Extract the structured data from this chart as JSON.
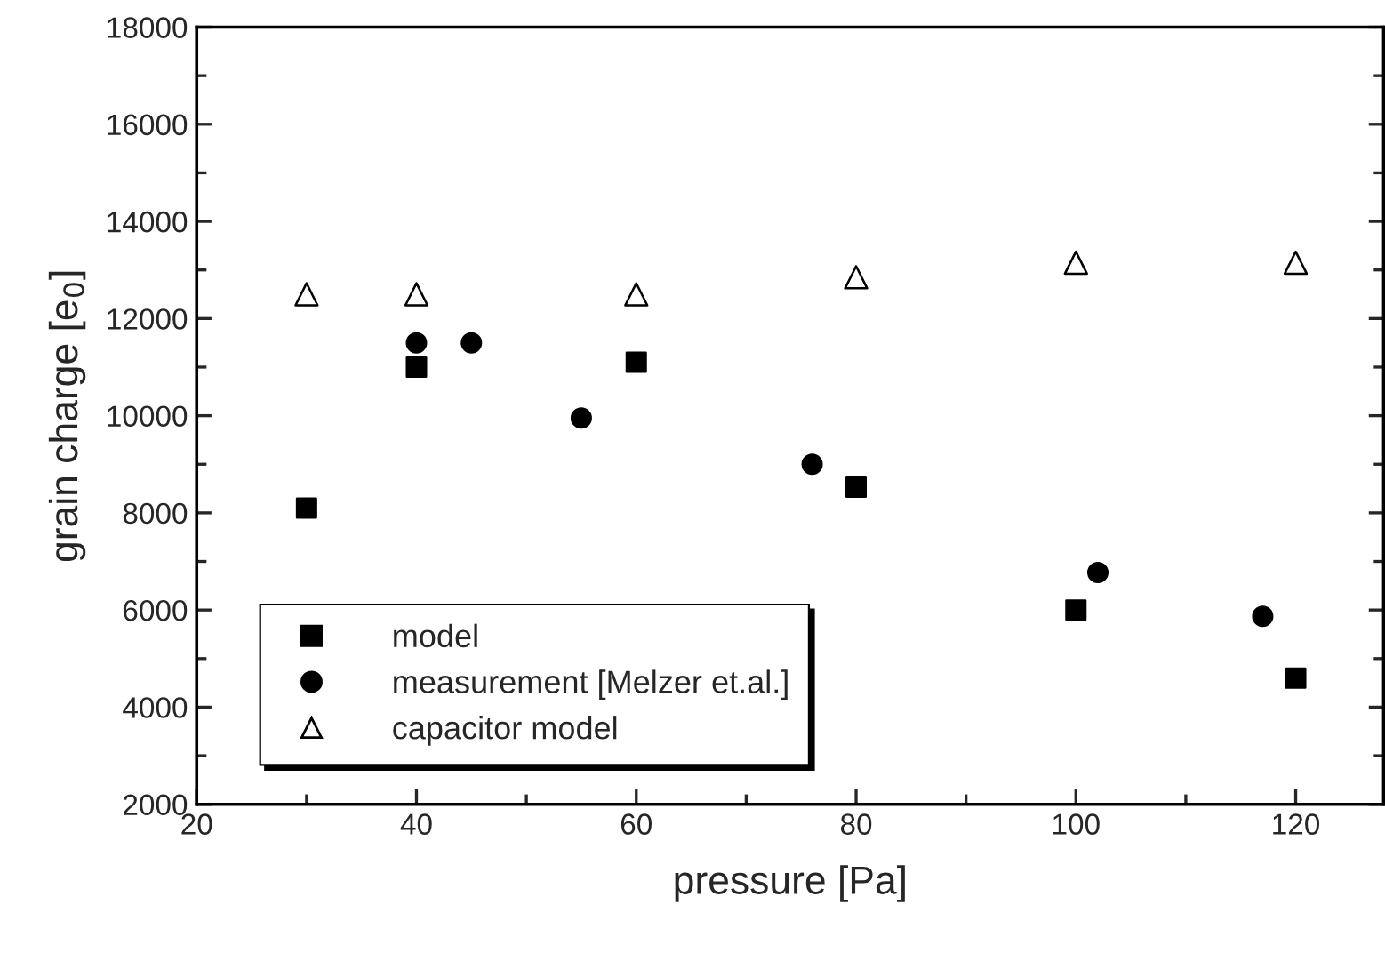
{
  "chart_data": {
    "type": "scatter",
    "xlabel": "pressure [Pa]",
    "ylabel": "grain charge [e$_{0}$]",
    "xlim": [
      20,
      128
    ],
    "xticks": [
      20,
      40,
      60,
      80,
      100,
      120
    ],
    "ylim": [
      2000,
      18000
    ],
    "yticks": [
      2000,
      4000,
      6000,
      8000,
      10000,
      12000,
      14000,
      16000,
      18000
    ],
    "grid": false,
    "legend": "bottom left",
    "series": [
      {
        "name": "model",
        "color": "#000000",
        "marker": "square",
        "x": [
          30,
          40,
          60,
          80,
          100,
          120
        ],
        "values": [
          8100,
          11000,
          11100,
          8530,
          6000,
          4600
        ]
      },
      {
        "name": "measurement [Melzer et.al.]",
        "color": "#000000",
        "marker": "circle",
        "x": [
          40,
          45,
          55,
          76,
          102,
          117
        ],
        "values": [
          11500,
          11500,
          9950,
          9000,
          6770,
          5870
        ]
      },
      {
        "name": "capacitor model",
        "color": "#000000",
        "marker": "triangle",
        "x": [
          30,
          40,
          60,
          80,
          100,
          120
        ],
        "values": [
          12500,
          12500,
          12500,
          12850,
          13150,
          13150
        ]
      }
    ]
  }
}
